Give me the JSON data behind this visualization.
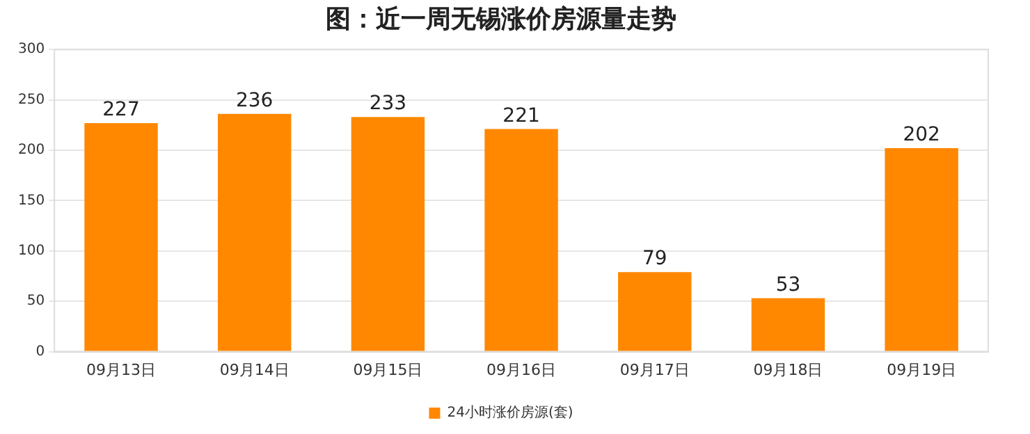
{
  "chart_data": {
    "type": "bar",
    "title": "图：近一周无锡涨价房源量走势",
    "categories": [
      "09月13日",
      "09月14日",
      "09月15日",
      "09月16日",
      "09月17日",
      "09月18日",
      "09月19日"
    ],
    "series": [
      {
        "name": "24小时涨价房源(套)",
        "color": "#ff8800",
        "values": [
          227,
          236,
          233,
          221,
          79,
          53,
          202
        ]
      }
    ],
    "ylim": [
      0,
      300
    ],
    "yticks": [
      0,
      50,
      100,
      150,
      200,
      250,
      300
    ],
    "grid": "y",
    "legend": "bottom",
    "data_labels": true
  }
}
